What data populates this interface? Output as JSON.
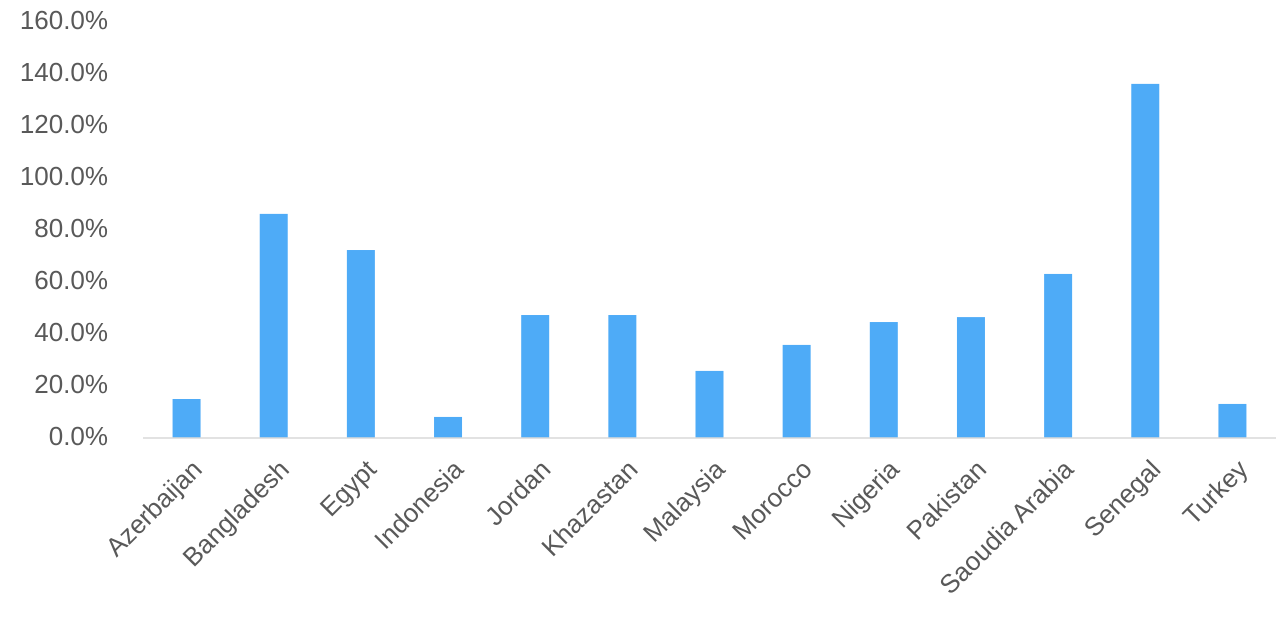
{
  "chart_data": {
    "type": "bar",
    "categories": [
      "Azerbaijan",
      "Bangladesh",
      "Egypt",
      "Indonesia",
      "Jordan",
      "Khazastan",
      "Malaysia",
      "Morocco",
      "Nigeria",
      "Pakistan",
      "Saoudia Arabia",
      "Senegal",
      "Turkey"
    ],
    "values": [
      15.0,
      86.2,
      72.3,
      8.1,
      47.3,
      47.3,
      25.8,
      35.8,
      44.6,
      46.5,
      63.1,
      136.2,
      13.1
    ],
    "color": "#4eabf7",
    "ylim": [
      0,
      160
    ],
    "yticks": [
      {
        "value": 0,
        "label": "0.0%"
      },
      {
        "value": 20,
        "label": "20.0%"
      },
      {
        "value": 40,
        "label": "40.0%"
      },
      {
        "value": 60,
        "label": "60.0%"
      },
      {
        "value": 80,
        "label": "80.0%"
      },
      {
        "value": 100,
        "label": "100.0%"
      },
      {
        "value": 120,
        "label": "120.0%"
      },
      {
        "value": 140,
        "label": "140.0%"
      },
      {
        "value": 160,
        "label": "160.0%"
      }
    ],
    "grid": false
  }
}
